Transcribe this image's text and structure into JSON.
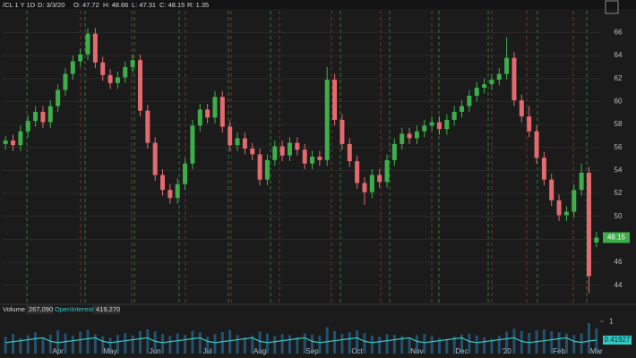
{
  "header": {
    "symbol": "/CL 1 Y 1D",
    "date": "D: 3/3/20",
    "open": "O: 47.72",
    "high": "H: 48.66",
    "low": "L: 47.31",
    "close": "C: 48.15",
    "range": "R: 1.35"
  },
  "volume_panel": {
    "volume_label": "Volume",
    "volume_value": "267,090",
    "oi_label": "OpenInterest",
    "oi_value": "419,270"
  },
  "chart_data": [
    {
      "type": "candlestick",
      "up_color": "#3daf4a",
      "down_color": "#e46a6f",
      "categories": [
        null,
        null,
        null,
        null,
        null,
        null,
        null,
        "Apr",
        null,
        null,
        null,
        null,
        null,
        null,
        "May",
        null,
        null,
        null,
        null,
        null,
        "Jun",
        null,
        null,
        null,
        null,
        null,
        null,
        "Jul",
        null,
        null,
        null,
        null,
        null,
        null,
        "Aug",
        null,
        null,
        null,
        null,
        null,
        null,
        "Sep",
        null,
        null,
        null,
        null,
        null,
        "Oct",
        null,
        null,
        null,
        null,
        null,
        null,
        null,
        "Nov",
        null,
        null,
        null,
        null,
        null,
        "Dec",
        null,
        null,
        null,
        null,
        null,
        "'20",
        null,
        null,
        null,
        null,
        null,
        null,
        "Feb",
        null,
        null,
        null,
        null,
        "Mar"
      ],
      "candles": [
        [
          56.3,
          57.0,
          55.8,
          56.6
        ],
        [
          56.6,
          57.1,
          55.7,
          56.2
        ],
        [
          56.2,
          57.9,
          55.7,
          57.4
        ],
        [
          57.4,
          58.8,
          56.9,
          58.3
        ],
        [
          58.3,
          59.6,
          57.8,
          59.1
        ],
        [
          59.1,
          59.6,
          57.7,
          58.2
        ],
        [
          58.2,
          60.1,
          57.7,
          59.6
        ],
        [
          59.6,
          61.5,
          59.1,
          61.0
        ],
        [
          61.0,
          62.9,
          60.5,
          62.4
        ],
        [
          62.4,
          64.0,
          61.9,
          63.5
        ],
        [
          63.5,
          64.6,
          63.0,
          64.1
        ],
        [
          64.1,
          66.4,
          63.6,
          65.9
        ],
        [
          65.9,
          66.4,
          62.9,
          63.4
        ],
        [
          63.4,
          63.9,
          61.8,
          62.3
        ],
        [
          62.3,
          62.8,
          61.1,
          61.6
        ],
        [
          61.6,
          62.6,
          61.1,
          62.1
        ],
        [
          62.1,
          63.5,
          61.6,
          63.0
        ],
        [
          63.0,
          64.1,
          62.5,
          63.6
        ],
        [
          63.6,
          64.1,
          58.7,
          59.2
        ],
        [
          59.2,
          59.7,
          55.9,
          56.4
        ],
        [
          56.4,
          56.9,
          53.1,
          53.6
        ],
        [
          53.6,
          54.1,
          51.8,
          52.3
        ],
        [
          52.3,
          52.8,
          51.1,
          51.6
        ],
        [
          51.6,
          53.3,
          51.1,
          52.8
        ],
        [
          52.8,
          55.1,
          52.3,
          54.6
        ],
        [
          54.6,
          58.4,
          54.1,
          57.9
        ],
        [
          57.9,
          59.8,
          57.4,
          59.3
        ],
        [
          59.3,
          59.8,
          58.1,
          58.6
        ],
        [
          58.6,
          60.9,
          58.1,
          60.4
        ],
        [
          60.4,
          60.9,
          57.3,
          57.8
        ],
        [
          57.8,
          58.3,
          55.7,
          56.2
        ],
        [
          56.2,
          57.3,
          55.7,
          56.8
        ],
        [
          56.8,
          57.3,
          55.4,
          55.9
        ],
        [
          55.9,
          56.4,
          54.9,
          55.4
        ],
        [
          55.4,
          55.9,
          52.7,
          53.2
        ],
        [
          53.2,
          55.4,
          52.7,
          54.9
        ],
        [
          54.9,
          56.6,
          54.4,
          56.1
        ],
        [
          56.1,
          56.6,
          54.8,
          55.3
        ],
        [
          55.3,
          56.9,
          54.8,
          56.4
        ],
        [
          56.4,
          56.9,
          55.3,
          55.8
        ],
        [
          55.8,
          56.3,
          54.1,
          54.6
        ],
        [
          54.6,
          55.7,
          54.1,
          55.2
        ],
        [
          55.2,
          55.7,
          54.4,
          54.9
        ],
        [
          54.9,
          63.0,
          54.4,
          61.9
        ],
        [
          61.9,
          62.4,
          57.9,
          58.4
        ],
        [
          58.4,
          58.9,
          55.8,
          56.3
        ],
        [
          56.3,
          56.8,
          54.3,
          54.8
        ],
        [
          54.8,
          55.3,
          52.4,
          52.9
        ],
        [
          52.9,
          53.4,
          51.0,
          52.1
        ],
        [
          52.1,
          54.1,
          51.6,
          53.6
        ],
        [
          53.6,
          54.1,
          52.5,
          53.0
        ],
        [
          53.0,
          55.4,
          52.5,
          54.9
        ],
        [
          54.9,
          56.8,
          54.4,
          56.3
        ],
        [
          56.3,
          57.7,
          55.8,
          57.2
        ],
        [
          57.2,
          57.7,
          56.3,
          56.8
        ],
        [
          56.8,
          57.9,
          56.3,
          57.4
        ],
        [
          57.4,
          58.4,
          56.9,
          57.9
        ],
        [
          57.9,
          58.7,
          57.4,
          58.2
        ],
        [
          58.2,
          58.7,
          57.1,
          57.6
        ],
        [
          57.6,
          58.9,
          57.1,
          58.4
        ],
        [
          58.4,
          59.6,
          57.9,
          59.1
        ],
        [
          59.1,
          60.1,
          58.6,
          59.6
        ],
        [
          59.6,
          61.0,
          59.1,
          60.5
        ],
        [
          60.5,
          61.7,
          60.0,
          61.2
        ],
        [
          61.2,
          62.0,
          60.7,
          61.5
        ],
        [
          61.5,
          62.4,
          61.0,
          61.9
        ],
        [
          61.9,
          62.9,
          61.4,
          62.4
        ],
        [
          62.4,
          65.6,
          61.9,
          63.8
        ],
        [
          63.8,
          64.3,
          59.6,
          60.1
        ],
        [
          60.1,
          60.6,
          58.2,
          58.7
        ],
        [
          58.7,
          59.6,
          56.9,
          57.4
        ],
        [
          57.4,
          57.9,
          54.6,
          55.1
        ],
        [
          55.1,
          55.6,
          52.7,
          53.2
        ],
        [
          53.2,
          53.7,
          50.9,
          51.4
        ],
        [
          51.4,
          51.9,
          49.6,
          50.1
        ],
        [
          50.1,
          50.9,
          49.6,
          50.4
        ],
        [
          50.4,
          52.8,
          49.9,
          52.3
        ],
        [
          52.3,
          54.6,
          51.8,
          53.8
        ],
        [
          53.8,
          54.3,
          43.3,
          44.8
        ],
        [
          47.72,
          48.66,
          47.31,
          48.15
        ]
      ],
      "ylim": [
        42.5,
        67.9
      ],
      "yticks": [
        44,
        46,
        48,
        50,
        52,
        54,
        56,
        58,
        60,
        62,
        64,
        66
      ],
      "grid": true
    },
    {
      "type": "volume",
      "series": [
        {
          "name": "Volume",
          "color": "#2a7fb8",
          "values": [
            0.52,
            0.61,
            0.48,
            0.57,
            0.66,
            0.5,
            0.59,
            0.72,
            0.63,
            0.55,
            0.68,
            0.74,
            0.6,
            0.53,
            0.49,
            0.58,
            0.64,
            0.57,
            0.7,
            0.76,
            0.69,
            0.61,
            0.55,
            0.63,
            0.58,
            0.71,
            0.66,
            0.52,
            0.6,
            0.67,
            0.73,
            0.58,
            0.5,
            0.56,
            0.69,
            0.62,
            0.54,
            0.6,
            0.57,
            0.51,
            0.63,
            0.59,
            0.55,
            0.82,
            0.7,
            0.61,
            0.66,
            0.72,
            0.64,
            0.56,
            0.52,
            0.6,
            0.58,
            0.54,
            0.5,
            0.57,
            0.61,
            0.55,
            0.48,
            0.45,
            0.53,
            0.59,
            0.62,
            0.57,
            0.5,
            0.46,
            0.55,
            0.68,
            0.77,
            0.7,
            0.64,
            0.72,
            0.75,
            0.69,
            0.66,
            0.62,
            0.58,
            0.63,
            0.95,
            0.78
          ]
        },
        {
          "name": "OpenInterest",
          "color": "#36c9c6",
          "values": [
            0.34,
            0.37,
            0.4,
            0.43,
            0.46,
            0.49,
            0.38,
            0.34,
            0.37,
            0.4,
            0.43,
            0.46,
            0.49,
            0.38,
            0.34,
            0.37,
            0.4,
            0.43,
            0.46,
            0.49,
            0.38,
            0.34,
            0.37,
            0.4,
            0.43,
            0.46,
            0.49,
            0.38,
            0.34,
            0.37,
            0.4,
            0.43,
            0.46,
            0.49,
            0.38,
            0.34,
            0.37,
            0.4,
            0.43,
            0.46,
            0.49,
            0.38,
            0.34,
            0.37,
            0.4,
            0.43,
            0.46,
            0.49,
            0.38,
            0.34,
            0.37,
            0.4,
            0.43,
            0.46,
            0.49,
            0.38,
            0.34,
            0.37,
            0.4,
            0.43,
            0.46,
            0.49,
            0.38,
            0.34,
            0.37,
            0.4,
            0.43,
            0.46,
            0.49,
            0.38,
            0.34,
            0.37,
            0.4,
            0.43,
            0.46,
            0.49,
            0.38,
            0.35,
            0.39,
            0.41927
          ]
        }
      ],
      "ylim": [
        0,
        1.2
      ],
      "yticks": [
        1
      ]
    }
  ]
}
